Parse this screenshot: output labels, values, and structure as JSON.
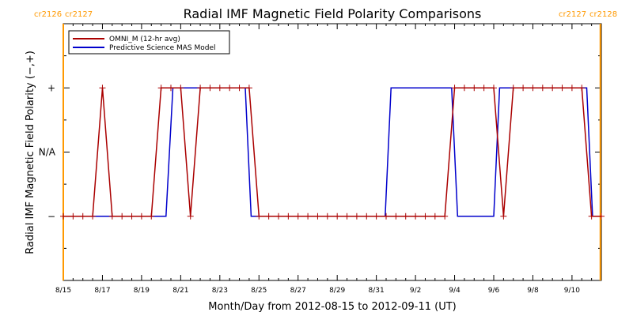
{
  "chart_data": {
    "type": "line",
    "title": "Radial IMF Magnetic Field Polarity Comparisons",
    "xlabel": "Month/Day from 2012-08-15 to 2012-09-11 (UT)",
    "ylabel": "Radial IMF Magnetic Field Polarity (−,+)",
    "xlim": [
      0,
      27.5
    ],
    "ylim": [
      -2,
      2
    ],
    "x_ticks": [
      {
        "x": 0,
        "label": "8/15"
      },
      {
        "x": 2,
        "label": "8/17"
      },
      {
        "x": 4,
        "label": "8/19"
      },
      {
        "x": 6,
        "label": "8/21"
      },
      {
        "x": 8,
        "label": "8/23"
      },
      {
        "x": 10,
        "label": "8/25"
      },
      {
        "x": 12,
        "label": "8/27"
      },
      {
        "x": 14,
        "label": "8/29"
      },
      {
        "x": 16,
        "label": "8/31"
      },
      {
        "x": 18,
        "label": "9/2"
      },
      {
        "x": 20,
        "label": "9/4"
      },
      {
        "x": 22,
        "label": "9/6"
      },
      {
        "x": 24,
        "label": "9/8"
      },
      {
        "x": 26,
        "label": "9/10"
      }
    ],
    "y_ticks": [
      {
        "y": 1,
        "label": "+"
      },
      {
        "y": 0,
        "label": "N/A"
      },
      {
        "y": -1,
        "label": "−"
      }
    ],
    "carrington_markers": [
      {
        "x": 0,
        "left_label": "cr2126",
        "right_label": "cr2127",
        "side": "left"
      },
      {
        "x": 27.45,
        "left_label": "cr2127",
        "right_label": "cr2128",
        "side": "right"
      }
    ],
    "legend": {
      "position": "top-left",
      "entries": [
        {
          "label": "OMNI_M (12-hr avg)",
          "color": "#aa0000"
        },
        {
          "label": "Predictive Science MAS Model",
          "color": "#0000cc"
        }
      ]
    },
    "series": [
      {
        "name": "OMNI_M (12-hr avg)",
        "color": "#aa0000",
        "marker": "+",
        "x": [
          0,
          0.5,
          1,
          1.5,
          2,
          2.5,
          3,
          3.5,
          4,
          4.5,
          5,
          5.5,
          6,
          6.5,
          7,
          7.5,
          8,
          8.5,
          9,
          9.5,
          10,
          10.5,
          11,
          11.5,
          12,
          12.5,
          13,
          13.5,
          14,
          14.5,
          15,
          15.5,
          16,
          16.5,
          17,
          17.5,
          18,
          18.5,
          19,
          19.5,
          20,
          20.5,
          21,
          21.5,
          22,
          22.5,
          23,
          23.5,
          24,
          24.5,
          25,
          25.5,
          26,
          26.5,
          27,
          27.5
        ],
        "values": [
          -1,
          -1,
          -1,
          -1,
          1,
          -1,
          -1,
          -1,
          -1,
          -1,
          1,
          1,
          1,
          -1,
          1,
          1,
          1,
          1,
          1,
          1,
          -1,
          -1,
          -1,
          -1,
          -1,
          -1,
          -1,
          -1,
          -1,
          -1,
          -1,
          -1,
          -1,
          -1,
          -1,
          -1,
          -1,
          -1,
          -1,
          -1,
          1,
          1,
          1,
          1,
          1,
          -1,
          1,
          1,
          1,
          1,
          1,
          1,
          1,
          1,
          -1,
          -1
        ]
      },
      {
        "name": "Predictive Science MAS Model",
        "color": "#0000cc",
        "marker": "none",
        "x": [
          0,
          5.25,
          5.6,
          9.3,
          9.6,
          16.45,
          16.75,
          19.85,
          20.15,
          22.0,
          22.3,
          26.75,
          27.05
        ],
        "values": [
          -1,
          -1,
          1,
          1,
          -1,
          -1,
          1,
          1,
          -1,
          -1,
          1,
          1,
          -1
        ]
      }
    ]
  }
}
